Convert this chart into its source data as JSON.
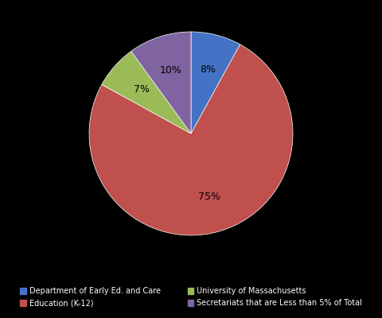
{
  "labels": [
    "Department of Early Ed. and Care",
    "Education (K-12)",
    "University of Massachusetts",
    "Secretariats that are Less than 5% of Total"
  ],
  "values": [
    8,
    75,
    7,
    10
  ],
  "colors": [
    "#4472C4",
    "#C0504D",
    "#9BBB59",
    "#8064A2"
  ],
  "pct_labels": [
    "8%",
    "75%",
    "7%",
    "10%"
  ],
  "background_color": "#000000",
  "legend_labels": [
    "Department of Early Ed. and Care",
    "Education (K-12)",
    "University of Massachusetts",
    "Secretariats that are Less than 5% of Total"
  ]
}
